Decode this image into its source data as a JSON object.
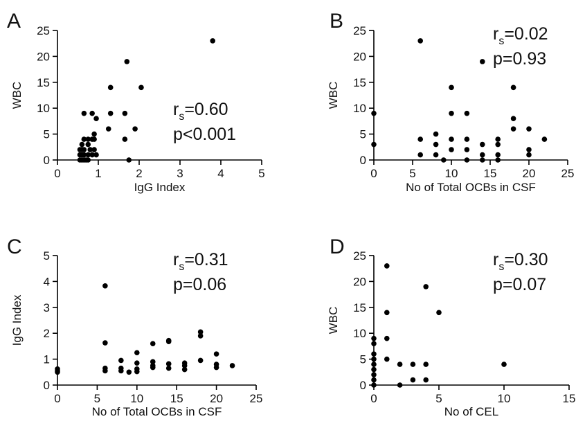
{
  "chart_data": [
    {
      "panel": "A",
      "type": "scatter",
      "xlabel": "IgG Index",
      "ylabel": "WBC",
      "xlim": [
        0,
        5
      ],
      "ylim": [
        0,
        25
      ],
      "xticks": [
        0,
        1,
        2,
        3,
        4,
        5
      ],
      "yticks": [
        0,
        5,
        10,
        15,
        20,
        25
      ],
      "stat": {
        "r_main": "r",
        "r_sub": "s",
        "r_value": "=0.60",
        "p": "p<0.001"
      },
      "points": [
        [
          0.55,
          0
        ],
        [
          0.6,
          0
        ],
        [
          0.65,
          0
        ],
        [
          0.7,
          0
        ],
        [
          0.75,
          0
        ],
        [
          0.55,
          1
        ],
        [
          0.6,
          1
        ],
        [
          0.65,
          1
        ],
        [
          0.75,
          1
        ],
        [
          0.85,
          1
        ],
        [
          0.95,
          1
        ],
        [
          0.55,
          2
        ],
        [
          0.6,
          2
        ],
        [
          0.65,
          2
        ],
        [
          0.8,
          2
        ],
        [
          0.9,
          2
        ],
        [
          0.6,
          3
        ],
        [
          0.75,
          3
        ],
        [
          0.65,
          4
        ],
        [
          0.75,
          4
        ],
        [
          0.85,
          4
        ],
        [
          0.9,
          4
        ],
        [
          0.9,
          5
        ],
        [
          0.95,
          8
        ],
        [
          0.65,
          9
        ],
        [
          0.85,
          9
        ],
        [
          1.25,
          6
        ],
        [
          1.3,
          9
        ],
        [
          1.3,
          14
        ],
        [
          1.65,
          9
        ],
        [
          1.65,
          4
        ],
        [
          1.7,
          19
        ],
        [
          1.75,
          0
        ],
        [
          1.9,
          6
        ],
        [
          2.05,
          14
        ],
        [
          3.8,
          23
        ]
      ]
    },
    {
      "panel": "B",
      "type": "scatter",
      "xlabel": "No of Total OCBs in CSF",
      "ylabel": "WBC",
      "xlim": [
        0,
        25
      ],
      "ylim": [
        0,
        25
      ],
      "xticks": [
        0,
        5,
        10,
        15,
        20,
        25
      ],
      "yticks": [
        0,
        5,
        10,
        15,
        20,
        25
      ],
      "stat": {
        "r_main": "r",
        "r_sub": "s",
        "r_value": "=0.02",
        "p": "p=0.93"
      },
      "points": [
        [
          0,
          9
        ],
        [
          0,
          3
        ],
        [
          6,
          23
        ],
        [
          6,
          4
        ],
        [
          6,
          1
        ],
        [
          8,
          5
        ],
        [
          8,
          3
        ],
        [
          8,
          1
        ],
        [
          9,
          0
        ],
        [
          10,
          14
        ],
        [
          10,
          9
        ],
        [
          10,
          4
        ],
        [
          10,
          2
        ],
        [
          12,
          9
        ],
        [
          12,
          4
        ],
        [
          12,
          2
        ],
        [
          12,
          0
        ],
        [
          14,
          19
        ],
        [
          14,
          3
        ],
        [
          14,
          1
        ],
        [
          14,
          0
        ],
        [
          16,
          4
        ],
        [
          16,
          3
        ],
        [
          16,
          1
        ],
        [
          16,
          0
        ],
        [
          18,
          14
        ],
        [
          18,
          8
        ],
        [
          18,
          6
        ],
        [
          20,
          6
        ],
        [
          20,
          2
        ],
        [
          20,
          1
        ],
        [
          22,
          4
        ]
      ]
    },
    {
      "panel": "C",
      "type": "scatter",
      "xlabel": "No of Total OCBs in CSF",
      "ylabel": "IgG Index",
      "xlim": [
        0,
        25
      ],
      "ylim": [
        0,
        5
      ],
      "xticks": [
        0,
        5,
        10,
        15,
        20,
        25
      ],
      "yticks": [
        0,
        1,
        2,
        3,
        4,
        5
      ],
      "stat": {
        "r_main": "r",
        "r_sub": "s",
        "r_value": "=0.31",
        "p": "p=0.06"
      },
      "points": [
        [
          0,
          0.62
        ],
        [
          0,
          0.55
        ],
        [
          0,
          0.5
        ],
        [
          6,
          3.83
        ],
        [
          6,
          1.63
        ],
        [
          6,
          0.65
        ],
        [
          6,
          0.55
        ],
        [
          8,
          0.95
        ],
        [
          8,
          0.65
        ],
        [
          8,
          0.55
        ],
        [
          9,
          0.5
        ],
        [
          10,
          1.25
        ],
        [
          10,
          0.85
        ],
        [
          10,
          0.62
        ],
        [
          10,
          0.52
        ],
        [
          12,
          1.6
        ],
        [
          12,
          0.9
        ],
        [
          12,
          0.75
        ],
        [
          12,
          0.68
        ],
        [
          14,
          1.72
        ],
        [
          14,
          1.68
        ],
        [
          14,
          0.82
        ],
        [
          14,
          0.65
        ],
        [
          16,
          0.85
        ],
        [
          16,
          0.75
        ],
        [
          16,
          0.6
        ],
        [
          18,
          2.05
        ],
        [
          18,
          1.9
        ],
        [
          18,
          0.95
        ],
        [
          20,
          1.2
        ],
        [
          20,
          0.8
        ],
        [
          20,
          0.68
        ],
        [
          22,
          0.75
        ]
      ]
    },
    {
      "panel": "D",
      "type": "scatter",
      "xlabel": "No of CEL",
      "ylabel": "WBC",
      "xlim": [
        0,
        15
      ],
      "ylim": [
        0,
        25
      ],
      "xticks": [
        0,
        5,
        10,
        15
      ],
      "yticks": [
        0,
        5,
        10,
        15,
        20,
        25
      ],
      "stat": {
        "r_main": "r",
        "r_sub": "s",
        "r_value": "=0.30",
        "p": "p=0.07"
      },
      "points": [
        [
          0,
          9
        ],
        [
          0,
          8
        ],
        [
          0,
          6
        ],
        [
          0,
          5
        ],
        [
          0,
          4
        ],
        [
          0,
          3
        ],
        [
          0,
          2
        ],
        [
          0,
          1
        ],
        [
          0,
          0
        ],
        [
          1,
          23
        ],
        [
          1,
          14
        ],
        [
          1,
          9
        ],
        [
          1,
          5
        ],
        [
          2,
          4
        ],
        [
          2,
          0
        ],
        [
          3,
          4
        ],
        [
          3,
          1
        ],
        [
          4,
          19
        ],
        [
          4,
          4
        ],
        [
          4,
          1
        ],
        [
          5,
          14
        ],
        [
          10,
          4
        ]
      ]
    }
  ]
}
